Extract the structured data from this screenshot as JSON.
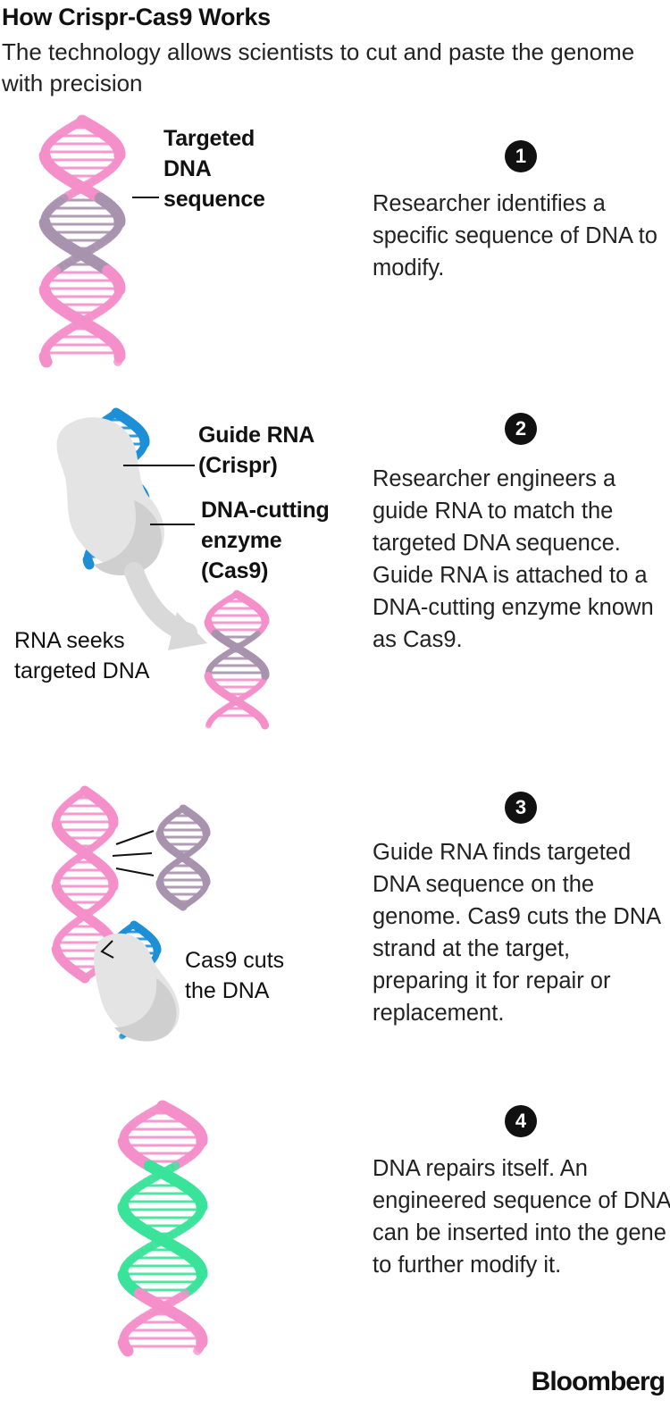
{
  "header": {
    "title": "How Crispr-Cas9 Works",
    "subtitle": "The technology allows scientists to cut and paste the genome with precision"
  },
  "labels": {
    "targeted_dna_line1": "Targeted",
    "targeted_dna_line2": "DNA",
    "targeted_dna_line3": "sequence",
    "guide_rna_line1": "Guide RNA",
    "guide_rna_line2": "(Crispr)",
    "enzyme_line1": "DNA-cutting",
    "enzyme_line2": "enzyme",
    "enzyme_line3": "(Cas9)",
    "rna_seeks_line1": "RNA seeks",
    "rna_seeks_line2": "targeted DNA",
    "cas9_cuts_line1": "Cas9 cuts",
    "cas9_cuts_line2": "the DNA"
  },
  "steps": [
    {
      "number": "1",
      "text": "Researcher identifies a specific sequence of DNA to modify."
    },
    {
      "number": "2",
      "text": "Researcher engineers a guide RNA to match the targeted DNA sequence. Guide RNA is attached to a DNA-cutting enzyme known as Cas9."
    },
    {
      "number": "3",
      "text": "Guide RNA finds targeted DNA sequence on the genome. Cas9 cuts the DNA strand at the target, preparing it for repair or replacement."
    },
    {
      "number": "4",
      "text": "DNA repairs itself. An engineered sequence of DNA can be inserted into the gene to further modify it."
    }
  ],
  "footer": {
    "brand": "Bloomberg"
  },
  "colors": {
    "dna_pink": "#f48fca",
    "target_purple": "#a893ae",
    "guide_blue": "#1d8fd6",
    "repair_green": "#3ae39a",
    "enzyme_gray": "#d9d9d9"
  }
}
